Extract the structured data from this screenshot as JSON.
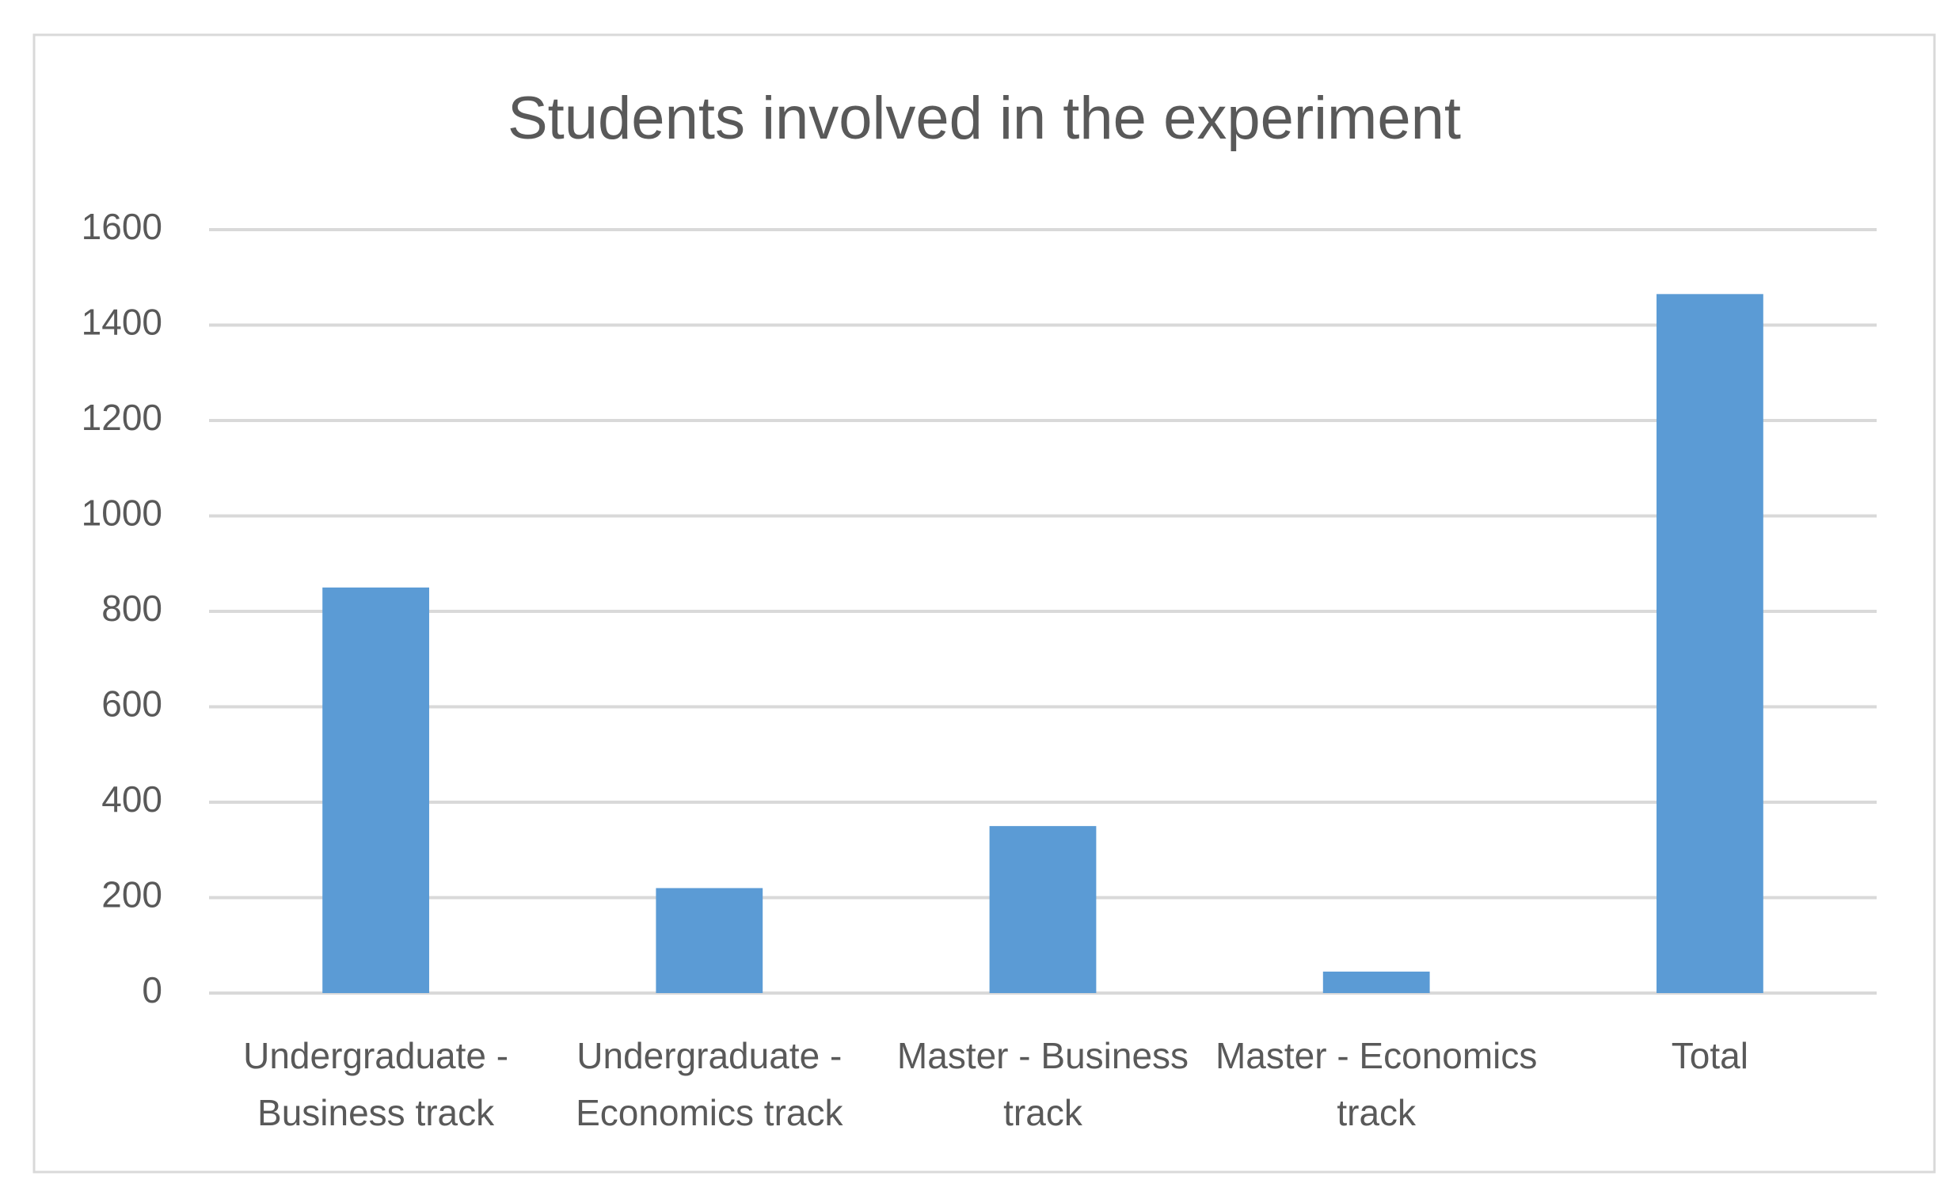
{
  "chart_data": {
    "type": "bar",
    "title": "Students involved in the experiment",
    "categories": [
      "Undergraduate - Business track",
      "Undergraduate - Economics track",
      "Master - Business track",
      "Master - Economics track",
      "Total"
    ],
    "values": [
      850,
      220,
      350,
      45,
      1465
    ],
    "color": "#5b9bd5",
    "ylim": [
      0,
      1600
    ],
    "yticks": [
      0,
      200,
      400,
      600,
      800,
      1000,
      1200,
      1400,
      1600
    ],
    "grid": true
  }
}
